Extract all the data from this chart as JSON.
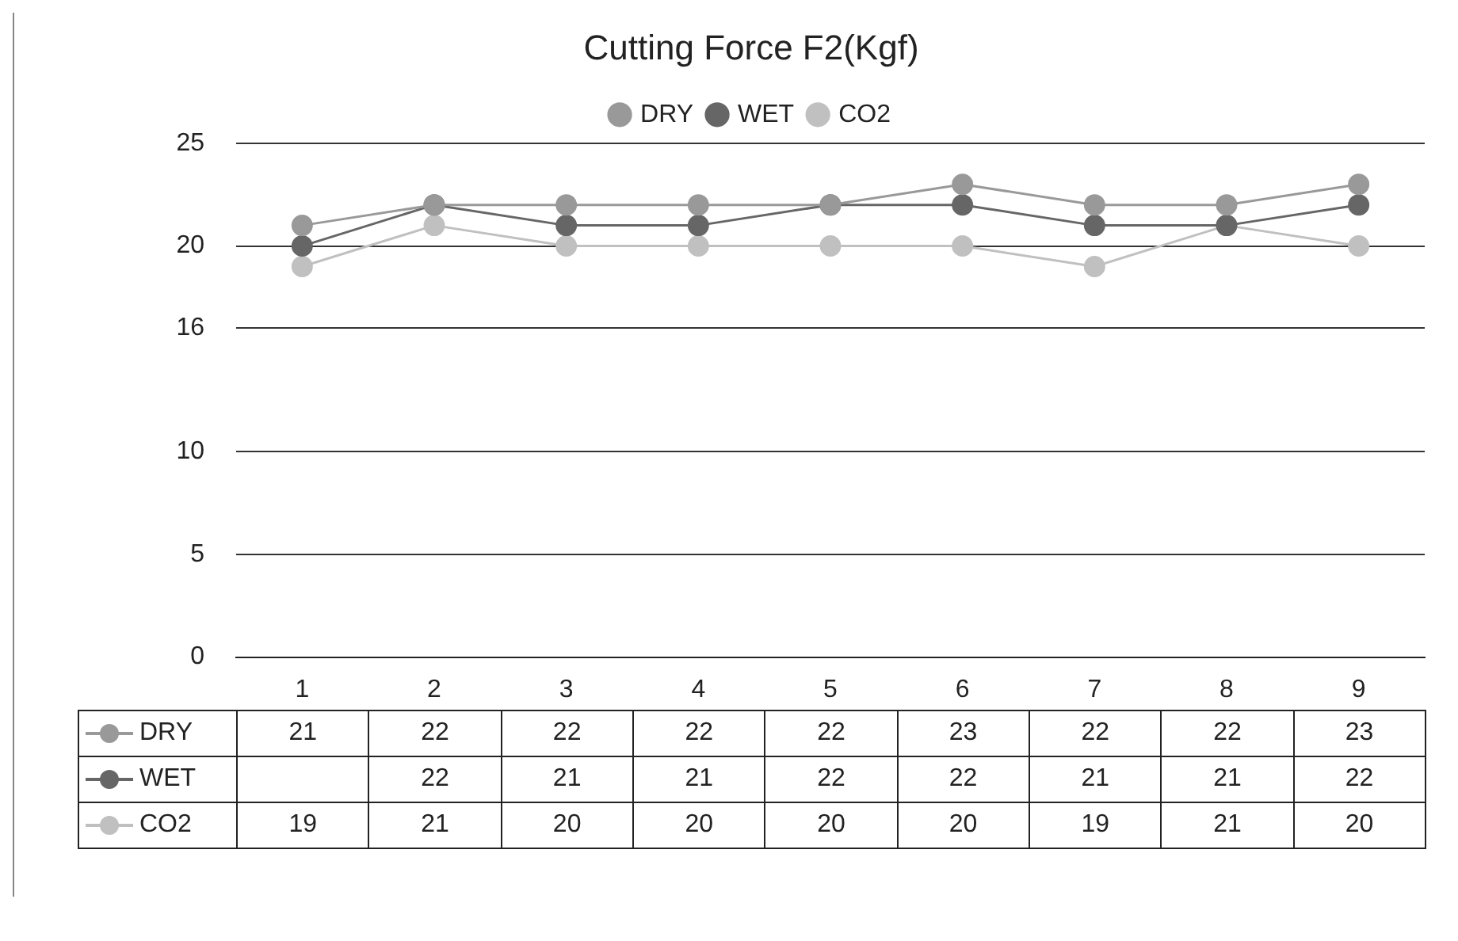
{
  "chart_data": {
    "type": "line",
    "title": "Cutting Force F2(Kgf)",
    "categories": [
      "1",
      "2",
      "3",
      "4",
      "5",
      "6",
      "7",
      "8",
      "9"
    ],
    "series": [
      {
        "name": "DRY",
        "color": "#999999",
        "values": [
          21,
          22,
          22,
          22,
          22,
          23,
          22,
          22,
          23
        ],
        "value_labels": [
          "21",
          "22",
          "22",
          "22",
          "22",
          "23",
          "22",
          "22",
          "23"
        ]
      },
      {
        "name": "WET",
        "color": "#666666",
        "values": [
          20,
          22,
          21,
          21,
          22,
          22,
          21,
          21,
          22
        ],
        "value_labels": [
          null,
          "22",
          "21",
          "21",
          "22",
          "22",
          "21",
          "21",
          "22"
        ]
      },
      {
        "name": "CO2",
        "color": "#c0c0c0",
        "values": [
          19,
          21,
          20,
          20,
          20,
          20,
          19,
          21,
          20
        ],
        "value_labels": [
          "19",
          "21",
          "20",
          "20",
          "20",
          "20",
          "19",
          "21",
          "20"
        ]
      }
    ],
    "ylim": [
      0,
      25
    ],
    "yticks": [
      0,
      5,
      10,
      16,
      20,
      25
    ],
    "grid": "y",
    "legend": "top",
    "marker": "circle",
    "line_style": "solid"
  }
}
